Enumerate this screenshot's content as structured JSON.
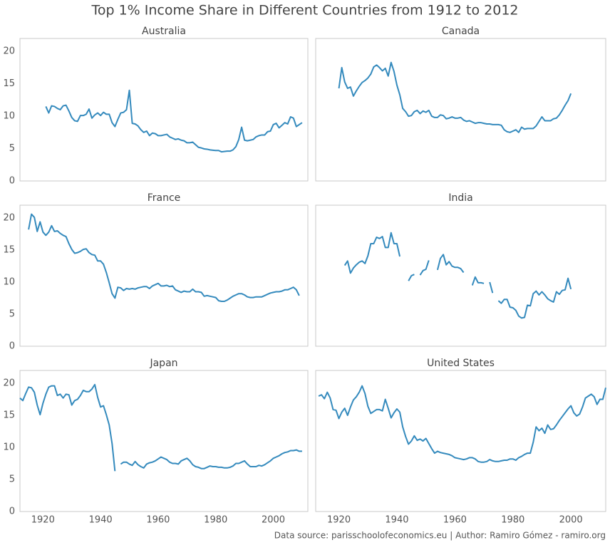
{
  "chart_data": {
    "type": "line",
    "title": "Top 1% Income Share in Different Countries from 1912 to 2012",
    "source": "Data source: parisschoolofeconomics.eu | Author: Ramiro Gómez - ramiro.org",
    "xlim": [
      1912,
      2012
    ],
    "xticks": [
      1920,
      1940,
      1960,
      1980,
      2000
    ],
    "ylim": [
      0,
      22
    ],
    "yticks": [
      0,
      5,
      10,
      15,
      20
    ],
    "grid": false,
    "x": [
      1912,
      1913,
      1914,
      1915,
      1916,
      1917,
      1918,
      1919,
      1920,
      1921,
      1922,
      1923,
      1924,
      1925,
      1926,
      1927,
      1928,
      1929,
      1930,
      1931,
      1932,
      1933,
      1934,
      1935,
      1936,
      1937,
      1938,
      1939,
      1940,
      1941,
      1942,
      1943,
      1944,
      1945,
      1946,
      1947,
      1948,
      1949,
      1950,
      1951,
      1952,
      1953,
      1954,
      1955,
      1956,
      1957,
      1958,
      1959,
      1960,
      1961,
      1962,
      1963,
      1964,
      1965,
      1966,
      1967,
      1968,
      1969,
      1970,
      1971,
      1972,
      1973,
      1974,
      1975,
      1976,
      1977,
      1978,
      1979,
      1980,
      1981,
      1982,
      1983,
      1984,
      1985,
      1986,
      1987,
      1988,
      1989,
      1990,
      1991,
      1992,
      1993,
      1994,
      1995,
      1996,
      1997,
      1998,
      1999,
      2000,
      2001,
      2002,
      2003,
      2004,
      2005,
      2006,
      2007,
      2008,
      2009,
      2010,
      2011,
      2012
    ],
    "series": [
      {
        "name": "Australia",
        "color": "#348abd",
        "values": [
          null,
          null,
          null,
          null,
          null,
          null,
          null,
          null,
          null,
          11.5,
          10.5,
          11.6,
          11.5,
          11.2,
          11.0,
          11.6,
          11.7,
          10.8,
          9.8,
          9.3,
          9.2,
          10.1,
          10.1,
          10.3,
          11.1,
          9.7,
          10.2,
          10.5,
          10.1,
          10.6,
          10.3,
          10.3,
          9.0,
          8.4,
          9.5,
          10.5,
          10.6,
          11.0,
          14.0,
          8.9,
          8.8,
          8.5,
          7.9,
          7.5,
          7.7,
          7.0,
          7.4,
          7.3,
          7.0,
          7.0,
          7.1,
          7.2,
          6.8,
          6.6,
          6.4,
          6.5,
          6.3,
          6.2,
          5.9,
          5.9,
          6.0,
          5.6,
          5.2,
          5.1,
          4.95,
          4.9,
          4.8,
          4.75,
          4.7,
          4.7,
          4.5,
          4.55,
          4.6,
          4.6,
          4.8,
          5.3,
          6.4,
          8.3,
          6.3,
          6.2,
          6.3,
          6.4,
          6.8,
          7.0,
          7.1,
          7.1,
          7.6,
          7.7,
          8.7,
          8.9,
          8.2,
          8.6,
          9.0,
          8.8,
          9.9,
          9.7,
          8.4,
          8.7,
          9.0,
          null,
          null
        ]
      },
      {
        "name": "Canada",
        "color": "#348abd",
        "values": [
          null,
          null,
          null,
          null,
          null,
          null,
          null,
          null,
          14.3,
          17.5,
          15.3,
          14.3,
          14.5,
          13.1,
          13.9,
          14.6,
          15.2,
          15.5,
          15.9,
          16.5,
          17.6,
          17.9,
          17.5,
          17.0,
          17.4,
          16.2,
          18.3,
          16.9,
          14.8,
          13.3,
          11.2,
          10.7,
          10.0,
          10.1,
          10.7,
          10.9,
          10.4,
          10.8,
          10.6,
          10.9,
          10.0,
          9.8,
          9.8,
          10.2,
          10.1,
          9.6,
          9.7,
          9.9,
          9.7,
          9.7,
          9.8,
          9.4,
          9.2,
          9.3,
          9.1,
          8.9,
          9.0,
          9.0,
          8.9,
          8.8,
          8.8,
          8.7,
          8.7,
          8.7,
          8.6,
          7.9,
          7.6,
          7.5,
          7.7,
          7.9,
          7.5,
          8.3,
          8.0,
          8.1,
          8.1,
          8.1,
          8.5,
          9.2,
          9.9,
          9.3,
          9.3,
          9.3,
          9.6,
          9.7,
          10.2,
          10.9,
          11.7,
          12.4,
          13.5,
          null,
          null,
          null,
          null,
          null,
          null,
          null,
          null,
          null,
          null,
          null,
          null
        ]
      },
      {
        "name": "France",
        "color": "#348abd",
        "values": [
          null,
          null,
          null,
          18.2,
          20.6,
          20.1,
          17.9,
          19.4,
          17.8,
          17.3,
          17.8,
          18.8,
          17.9,
          18.0,
          17.6,
          17.3,
          17.1,
          16.0,
          15.1,
          14.5,
          14.6,
          14.8,
          15.1,
          15.2,
          14.6,
          14.3,
          14.2,
          13.3,
          13.3,
          12.8,
          11.5,
          9.9,
          8.2,
          7.5,
          9.2,
          9.1,
          8.7,
          9.0,
          8.9,
          9.0,
          8.9,
          9.1,
          9.2,
          9.3,
          9.3,
          9.0,
          9.4,
          9.6,
          9.8,
          9.4,
          9.4,
          9.5,
          9.3,
          9.4,
          8.8,
          8.6,
          8.4,
          8.6,
          8.5,
          8.5,
          8.9,
          8.5,
          8.5,
          8.4,
          7.8,
          7.9,
          7.8,
          7.7,
          7.6,
          7.1,
          7.0,
          7.0,
          7.2,
          7.5,
          7.8,
          8.0,
          8.2,
          8.2,
          8.0,
          7.7,
          7.6,
          7.6,
          7.7,
          7.7,
          7.7,
          7.9,
          8.1,
          8.3,
          8.4,
          8.5,
          8.5,
          8.6,
          8.8,
          8.8,
          9.0,
          9.2,
          8.8,
          7.9,
          null,
          null,
          null
        ]
      },
      {
        "name": "India",
        "color": "#348abd",
        "values": [
          null,
          null,
          null,
          null,
          null,
          null,
          null,
          null,
          null,
          null,
          12.6,
          13.3,
          11.4,
          12.2,
          12.7,
          13.1,
          13.3,
          12.9,
          14.1,
          16.0,
          16.0,
          17.0,
          16.8,
          17.1,
          15.4,
          15.4,
          17.7,
          16.0,
          16.0,
          14.0,
          null,
          null,
          10.2,
          11.0,
          11.2,
          null,
          11.1,
          11.8,
          12.0,
          13.4,
          null,
          null,
          11.9,
          13.7,
          14.3,
          12.7,
          13.2,
          12.5,
          12.3,
          12.3,
          12.1,
          11.5,
          null,
          null,
          9.5,
          10.8,
          9.9,
          9.9,
          9.8,
          null,
          10.0,
          8.3,
          null,
          7.1,
          6.7,
          7.3,
          7.3,
          6.1,
          6.0,
          5.6,
          4.7,
          4.4,
          4.5,
          6.4,
          6.3,
          8.2,
          8.6,
          8.0,
          8.5,
          8.0,
          7.4,
          7.1,
          6.9,
          8.5,
          8.1,
          8.7,
          8.8,
          10.6,
          8.9,
          null,
          null,
          null,
          null,
          null,
          null,
          null,
          null,
          null,
          null,
          null,
          null
        ]
      },
      {
        "name": "Japan",
        "color": "#348abd",
        "values": [
          17.7,
          17.3,
          18.4,
          19.4,
          19.3,
          18.6,
          16.6,
          15.1,
          16.9,
          18.3,
          19.4,
          19.6,
          19.6,
          18.1,
          18.3,
          17.7,
          18.3,
          18.2,
          16.6,
          17.3,
          17.5,
          18.1,
          18.9,
          18.7,
          18.7,
          19.1,
          19.8,
          17.8,
          16.3,
          16.5,
          15.1,
          13.5,
          10.6,
          6.3,
          null,
          7.4,
          7.7,
          7.7,
          7.4,
          7.2,
          7.8,
          7.3,
          7.0,
          6.8,
          7.4,
          7.6,
          7.7,
          7.9,
          8.2,
          8.5,
          8.3,
          8.1,
          7.7,
          7.5,
          7.5,
          7.4,
          7.9,
          8.1,
          8.3,
          7.9,
          7.3,
          7.0,
          6.9,
          6.7,
          6.7,
          6.9,
          7.1,
          7.0,
          7.0,
          6.9,
          6.9,
          6.8,
          6.8,
          6.9,
          7.1,
          7.5,
          7.5,
          7.7,
          7.9,
          7.4,
          7.0,
          7.0,
          7.0,
          7.2,
          7.1,
          7.3,
          7.6,
          7.9,
          8.3,
          8.5,
          8.7,
          9.0,
          9.2,
          9.3,
          9.5,
          9.5,
          9.6,
          9.4,
          9.4,
          null,
          null
        ]
      },
      {
        "name": "United States",
        "color": "#348abd",
        "values": [
          null,
          18.0,
          18.2,
          17.6,
          18.6,
          17.7,
          15.9,
          15.8,
          14.5,
          15.5,
          16.1,
          15.0,
          16.3,
          17.4,
          17.9,
          18.6,
          19.6,
          18.4,
          16.4,
          15.3,
          15.6,
          15.9,
          15.9,
          15.7,
          17.5,
          16.1,
          14.6,
          15.4,
          16.0,
          15.5,
          13.2,
          11.7,
          10.5,
          11.0,
          11.8,
          11.1,
          11.3,
          11.0,
          11.4,
          10.6,
          9.8,
          9.1,
          9.4,
          9.2,
          9.1,
          9.0,
          8.9,
          8.7,
          8.4,
          8.3,
          8.2,
          8.1,
          8.2,
          8.4,
          8.4,
          8.2,
          7.8,
          7.7,
          7.7,
          7.8,
          8.1,
          7.9,
          7.8,
          7.8,
          7.9,
          8.0,
          8.0,
          8.2,
          8.2,
          8.0,
          8.4,
          8.6,
          8.9,
          9.1,
          9.1,
          10.8,
          13.2,
          12.6,
          13.0,
          12.2,
          13.5,
          12.8,
          12.9,
          13.5,
          14.2,
          14.8,
          15.4,
          16.0,
          16.5,
          15.4,
          14.9,
          15.2,
          16.3,
          17.7,
          18.0,
          18.3,
          17.9,
          16.7,
          17.5,
          17.5,
          19.3
        ]
      }
    ]
  }
}
